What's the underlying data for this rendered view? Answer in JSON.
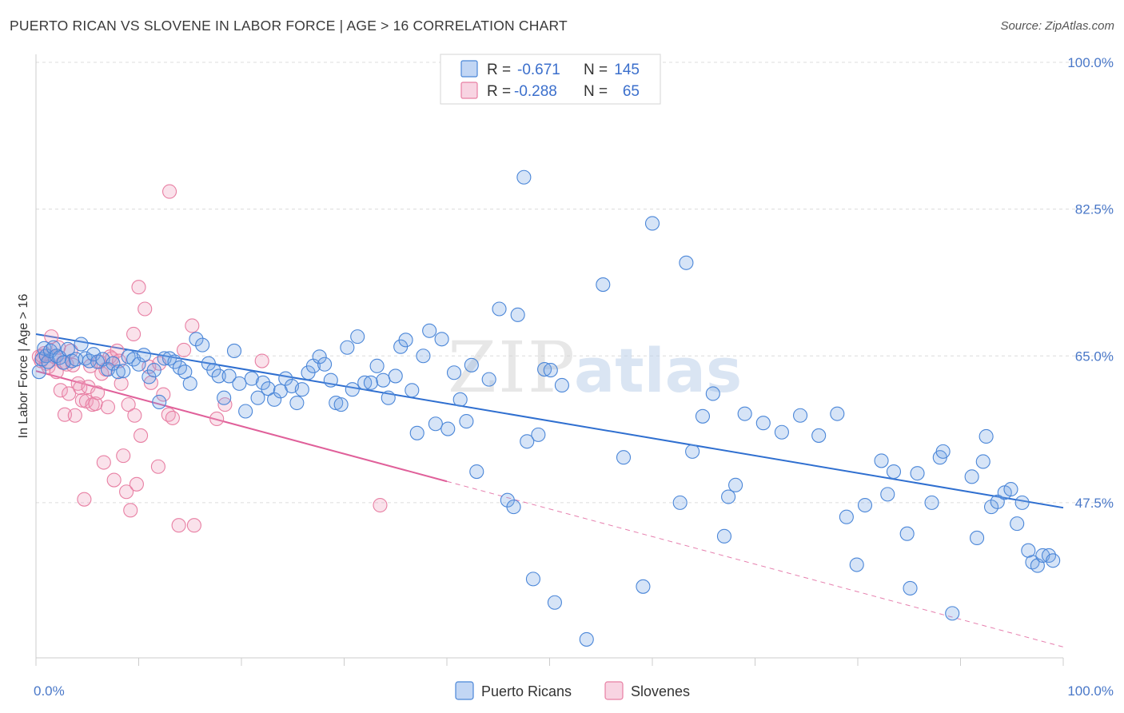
{
  "title": "PUERTO RICAN VS SLOVENE IN LABOR FORCE | AGE > 16 CORRELATION CHART",
  "source": "Source: ZipAtlas.com",
  "colors": {
    "blue": "#4a86d8",
    "blue_fill": "rgba(120,165,230,0.30)",
    "blue_line": "#2f6fd0",
    "pink": "#e87fa3",
    "pink_fill": "rgba(240,160,190,0.30)",
    "pink_line": "#e0609a",
    "grid": "#dcdcdc",
    "label": "#4a78c8"
  },
  "legend": {
    "r_label": "R =",
    "n_label": "N =",
    "rows": [
      {
        "series": "blue",
        "r": "-0.671",
        "n": "145"
      },
      {
        "series": "pink",
        "r": "-0.288",
        "n": "65"
      }
    ]
  },
  "bottom_legend": [
    "Puerto Ricans",
    "Slovenes"
  ],
  "chart_data": {
    "type": "scatter",
    "title": "PUERTO RICAN VS SLOVENE IN LABOR FORCE | AGE > 16 CORRELATION CHART",
    "xlabel": "",
    "ylabel": "In Labor Force | Age > 16",
    "xlim": [
      0,
      100
    ],
    "ylim": [
      29,
      100
    ],
    "x_tick_labels": [
      "0.0%",
      "100.0%"
    ],
    "y_ticks": [
      47.5,
      65.0,
      82.5,
      100.0
    ],
    "y_tick_labels": [
      "47.5%",
      "65.0%",
      "82.5%",
      "100.0%"
    ],
    "grid": "horizontal dashed",
    "legend_position": "top-center",
    "series": [
      {
        "name": "Puerto Ricans",
        "color": "blue",
        "trend": {
          "x": [
            0,
            100
          ],
          "y": [
            67.6,
            46.9
          ],
          "solid_until": 100
        },
        "points": [
          [
            0.3,
            63.1
          ],
          [
            0.6,
            64.6
          ],
          [
            0.8,
            65.9
          ],
          [
            1.0,
            65.0
          ],
          [
            1.2,
            64.3
          ],
          [
            1.4,
            65.6
          ],
          [
            1.7,
            66.0
          ],
          [
            2.0,
            65.0
          ],
          [
            2.3,
            64.8
          ],
          [
            2.7,
            64.2
          ],
          [
            3.1,
            65.8
          ],
          [
            3.5,
            64.4
          ],
          [
            3.9,
            64.6
          ],
          [
            4.4,
            66.4
          ],
          [
            4.8,
            64.7
          ],
          [
            5.2,
            64.4
          ],
          [
            5.6,
            65.2
          ],
          [
            6.0,
            64.3
          ],
          [
            6.5,
            64.6
          ],
          [
            7.0,
            63.4
          ],
          [
            7.5,
            64.1
          ],
          [
            8.0,
            63.1
          ],
          [
            8.5,
            63.2
          ],
          [
            9.0,
            64.9
          ],
          [
            9.5,
            64.6
          ],
          [
            10.0,
            64.0
          ],
          [
            10.5,
            65.1
          ],
          [
            11.0,
            62.5
          ],
          [
            11.5,
            63.3
          ],
          [
            12.0,
            59.5
          ],
          [
            12.5,
            64.7
          ],
          [
            13.0,
            64.7
          ],
          [
            13.5,
            64.3
          ],
          [
            14.0,
            63.6
          ],
          [
            14.5,
            63.1
          ],
          [
            15.0,
            61.7
          ],
          [
            15.6,
            67.0
          ],
          [
            16.2,
            66.3
          ],
          [
            16.8,
            64.1
          ],
          [
            17.3,
            63.3
          ],
          [
            17.8,
            62.6
          ],
          [
            18.3,
            60.0
          ],
          [
            18.8,
            62.6
          ],
          [
            19.3,
            65.6
          ],
          [
            19.8,
            61.7
          ],
          [
            20.4,
            58.4
          ],
          [
            21.0,
            62.3
          ],
          [
            21.6,
            60.0
          ],
          [
            22.1,
            61.8
          ],
          [
            22.6,
            61.1
          ],
          [
            23.2,
            59.8
          ],
          [
            23.8,
            60.8
          ],
          [
            24.3,
            62.3
          ],
          [
            24.9,
            61.4
          ],
          [
            25.4,
            59.4
          ],
          [
            25.9,
            61.0
          ],
          [
            26.5,
            63.0
          ],
          [
            27.0,
            63.8
          ],
          [
            27.6,
            64.9
          ],
          [
            28.1,
            64.0
          ],
          [
            28.7,
            62.1
          ],
          [
            29.2,
            59.4
          ],
          [
            29.7,
            59.2
          ],
          [
            30.3,
            66.0
          ],
          [
            30.8,
            61.0
          ],
          [
            31.3,
            67.3
          ],
          [
            32.0,
            61.8
          ],
          [
            32.6,
            61.8
          ],
          [
            33.2,
            63.8
          ],
          [
            33.8,
            62.1
          ],
          [
            34.3,
            60.0
          ],
          [
            35.0,
            62.6
          ],
          [
            35.5,
            66.1
          ],
          [
            36.0,
            66.9
          ],
          [
            36.6,
            60.9
          ],
          [
            37.1,
            55.8
          ],
          [
            37.7,
            65.0
          ],
          [
            38.3,
            68.0
          ],
          [
            38.9,
            56.9
          ],
          [
            39.5,
            67.0
          ],
          [
            40.1,
            56.3
          ],
          [
            40.7,
            63.0
          ],
          [
            41.3,
            59.8
          ],
          [
            41.9,
            57.2
          ],
          [
            42.4,
            63.9
          ],
          [
            42.9,
            51.2
          ],
          [
            44.1,
            62.2
          ],
          [
            45.1,
            70.6
          ],
          [
            45.9,
            47.8
          ],
          [
            46.5,
            47.0
          ],
          [
            46.9,
            69.9
          ],
          [
            47.5,
            86.3
          ],
          [
            47.8,
            54.8
          ],
          [
            48.4,
            38.4
          ],
          [
            48.9,
            55.6
          ],
          [
            49.5,
            63.4
          ],
          [
            50.1,
            63.3
          ],
          [
            50.5,
            35.6
          ],
          [
            51.2,
            61.5
          ],
          [
            53.6,
            31.2
          ],
          [
            55.2,
            73.5
          ],
          [
            57.2,
            52.9
          ],
          [
            59.1,
            37.5
          ],
          [
            60.0,
            80.8
          ],
          [
            62.7,
            47.5
          ],
          [
            63.3,
            76.1
          ],
          [
            63.9,
            53.6
          ],
          [
            64.9,
            57.8
          ],
          [
            65.9,
            60.5
          ],
          [
            67.0,
            43.5
          ],
          [
            67.4,
            48.2
          ],
          [
            68.1,
            49.6
          ],
          [
            69.0,
            58.1
          ],
          [
            70.8,
            57.0
          ],
          [
            72.6,
            55.9
          ],
          [
            74.4,
            57.9
          ],
          [
            76.2,
            55.5
          ],
          [
            78.0,
            58.1
          ],
          [
            78.9,
            45.8
          ],
          [
            79.9,
            40.1
          ],
          [
            80.7,
            47.2
          ],
          [
            82.3,
            52.5
          ],
          [
            82.9,
            48.5
          ],
          [
            83.5,
            51.2
          ],
          [
            84.8,
            43.8
          ],
          [
            85.1,
            37.3
          ],
          [
            85.8,
            51.0
          ],
          [
            87.2,
            47.5
          ],
          [
            88.0,
            52.9
          ],
          [
            88.3,
            53.6
          ],
          [
            89.2,
            34.3
          ],
          [
            91.1,
            50.6
          ],
          [
            91.6,
            43.3
          ],
          [
            92.2,
            52.4
          ],
          [
            92.5,
            55.4
          ],
          [
            93.0,
            47.0
          ],
          [
            93.6,
            47.6
          ],
          [
            94.3,
            48.7
          ],
          [
            94.9,
            49.1
          ],
          [
            95.5,
            45.0
          ],
          [
            96.0,
            47.5
          ],
          [
            96.6,
            41.8
          ],
          [
            97.0,
            40.4
          ],
          [
            97.5,
            40.0
          ],
          [
            98.0,
            41.2
          ],
          [
            98.6,
            41.2
          ],
          [
            99.0,
            40.6
          ]
        ]
      },
      {
        "name": "Slovenes",
        "color": "pink",
        "trend": {
          "x": [
            0,
            100
          ],
          "y": [
            63.2,
            30.3
          ],
          "solid_until": 40
        },
        "points": [
          [
            0.5,
            64.4
          ],
          [
            0.8,
            65.3
          ],
          [
            1.0,
            64.1
          ],
          [
            1.2,
            63.7
          ],
          [
            1.5,
            67.3
          ],
          [
            1.8,
            64.9
          ],
          [
            2.0,
            63.1
          ],
          [
            2.2,
            66.0
          ],
          [
            2.4,
            60.9
          ],
          [
            2.6,
            64.2
          ],
          [
            2.8,
            58.0
          ],
          [
            3.0,
            64.0
          ],
          [
            3.2,
            60.5
          ],
          [
            3.4,
            65.6
          ],
          [
            3.6,
            63.9
          ],
          [
            3.8,
            57.9
          ],
          [
            4.1,
            61.7
          ],
          [
            4.3,
            61.2
          ],
          [
            4.5,
            59.7
          ],
          [
            4.7,
            47.9
          ],
          [
            4.9,
            59.6
          ],
          [
            5.1,
            61.3
          ],
          [
            5.3,
            63.8
          ],
          [
            5.5,
            59.2
          ],
          [
            5.8,
            59.3
          ],
          [
            6.0,
            60.6
          ],
          [
            6.2,
            64.3
          ],
          [
            6.4,
            62.9
          ],
          [
            6.6,
            52.3
          ],
          [
            6.8,
            63.4
          ],
          [
            7.0,
            58.9
          ],
          [
            7.2,
            64.9
          ],
          [
            7.4,
            64.7
          ],
          [
            7.6,
            50.2
          ],
          [
            7.9,
            65.6
          ],
          [
            8.1,
            64.4
          ],
          [
            8.3,
            61.7
          ],
          [
            8.5,
            53.1
          ],
          [
            8.8,
            48.8
          ],
          [
            9.0,
            59.2
          ],
          [
            9.2,
            46.6
          ],
          [
            9.5,
            67.6
          ],
          [
            9.6,
            57.9
          ],
          [
            9.8,
            49.7
          ],
          [
            10.0,
            73.2
          ],
          [
            10.2,
            55.5
          ],
          [
            10.6,
            70.6
          ],
          [
            11.0,
            63.7
          ],
          [
            11.2,
            61.8
          ],
          [
            11.9,
            51.8
          ],
          [
            12.0,
            64.1
          ],
          [
            12.4,
            60.4
          ],
          [
            12.9,
            58.0
          ],
          [
            13.0,
            84.6
          ],
          [
            13.3,
            57.6
          ],
          [
            13.9,
            44.8
          ],
          [
            14.4,
            65.7
          ],
          [
            15.2,
            68.6
          ],
          [
            15.4,
            44.8
          ],
          [
            17.6,
            57.5
          ],
          [
            18.4,
            59.2
          ],
          [
            22.0,
            64.4
          ],
          [
            33.5,
            47.2
          ],
          [
            0.3,
            64.9
          ],
          [
            0.6,
            65.0
          ]
        ]
      }
    ]
  }
}
